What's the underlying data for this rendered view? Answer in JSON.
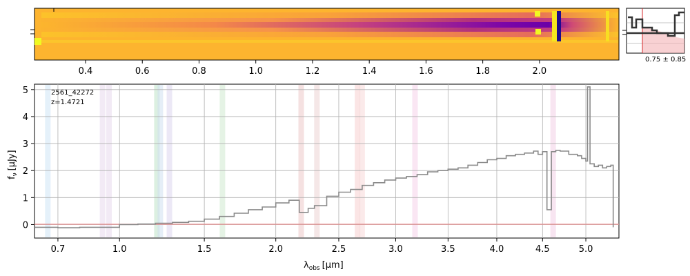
{
  "chart_data": [
    {
      "type": "heatmap",
      "name": "2d-spectrum",
      "top_ticks": [
        "0.4",
        "0.6",
        "0.8",
        "1.0",
        "1.2",
        "1.4",
        "1.6",
        "1.8",
        "2.0"
      ],
      "top_tick_values": [
        0.4,
        0.6,
        0.8,
        1.0,
        1.2,
        1.4,
        1.6,
        1.8,
        2.0
      ],
      "colormap": "plasma",
      "colors": {
        "low": "#3b049a",
        "mid": "#e16462",
        "high": "#fcce25"
      }
    },
    {
      "type": "line",
      "name": "redshift-pdf",
      "annotation": "0.75 ± 0.85",
      "colors": {
        "line": "#333333",
        "marker": "#d62728"
      }
    },
    {
      "type": "line",
      "name": "1d-spectrum",
      "annotation_id": "2561_42272",
      "annotation_z": "z=1.4721",
      "xlabel_main": "λ",
      "xlabel_sub": "obs",
      "xlabel_unit": "[μm]",
      "ylabel_main": "f",
      "ylabel_sub": "ν",
      "ylabel_unit": "[μJy]",
      "x_ticks": [
        "0.7",
        "1.0",
        "1.5",
        "2.0",
        "2.5",
        "3.0",
        "3.5",
        "4.0",
        "4.5",
        "5.0"
      ],
      "x_tick_values": [
        0.7,
        1.0,
        1.5,
        2.0,
        2.5,
        3.0,
        3.5,
        4.0,
        4.5,
        5.0
      ],
      "y_ticks": [
        "0",
        "1",
        "2",
        "3",
        "4",
        "5"
      ],
      "y_tick_values": [
        0,
        1,
        2,
        3,
        4,
        5
      ],
      "xlim": [
        0.6,
        5.4
      ],
      "ylim": [
        -0.5,
        5.2
      ],
      "grid": true,
      "lines_um": [
        0.656,
        0.912,
        0.945,
        1.208,
        1.228,
        1.282,
        1.62,
        2.195,
        2.32,
        2.66,
        2.7,
        3.18,
        4.62
      ],
      "series": [
        {
          "x": [
            0.6,
            0.7,
            0.8,
            0.9,
            1.0,
            1.1,
            1.2,
            1.3,
            1.4,
            1.5,
            1.6,
            1.7,
            1.8,
            1.9,
            2.0,
            2.1,
            2.18,
            2.25,
            2.3,
            2.4,
            2.5,
            2.6,
            2.7,
            2.8,
            2.9,
            3.0,
            3.1,
            3.2,
            3.3,
            3.4,
            3.5,
            3.6,
            3.7,
            3.8,
            3.9,
            4.0,
            4.1,
            4.2,
            4.3,
            4.4,
            4.45,
            4.5,
            4.55,
            4.6,
            4.65,
            4.7,
            4.8,
            4.9,
            4.95,
            5.0,
            5.02,
            5.05,
            5.1,
            5.15,
            5.2,
            5.25,
            5.3,
            5.33
          ],
          "y": [
            -0.1,
            -0.12,
            -0.1,
            -0.1,
            0.0,
            0.02,
            0.05,
            0.08,
            0.12,
            0.2,
            0.3,
            0.42,
            0.55,
            0.65,
            0.8,
            0.9,
            0.45,
            0.6,
            0.7,
            1.05,
            1.2,
            1.3,
            1.45,
            1.55,
            1.65,
            1.72,
            1.78,
            1.85,
            1.95,
            2.0,
            2.05,
            2.1,
            2.2,
            2.3,
            2.4,
            2.45,
            2.55,
            2.6,
            2.65,
            2.72,
            2.6,
            2.7,
            0.55,
            2.7,
            2.75,
            2.72,
            2.6,
            2.55,
            2.45,
            2.35,
            5.1,
            2.25,
            2.15,
            2.2,
            2.1,
            2.15,
            2.2,
            -0.1
          ]
        }
      ]
    }
  ]
}
